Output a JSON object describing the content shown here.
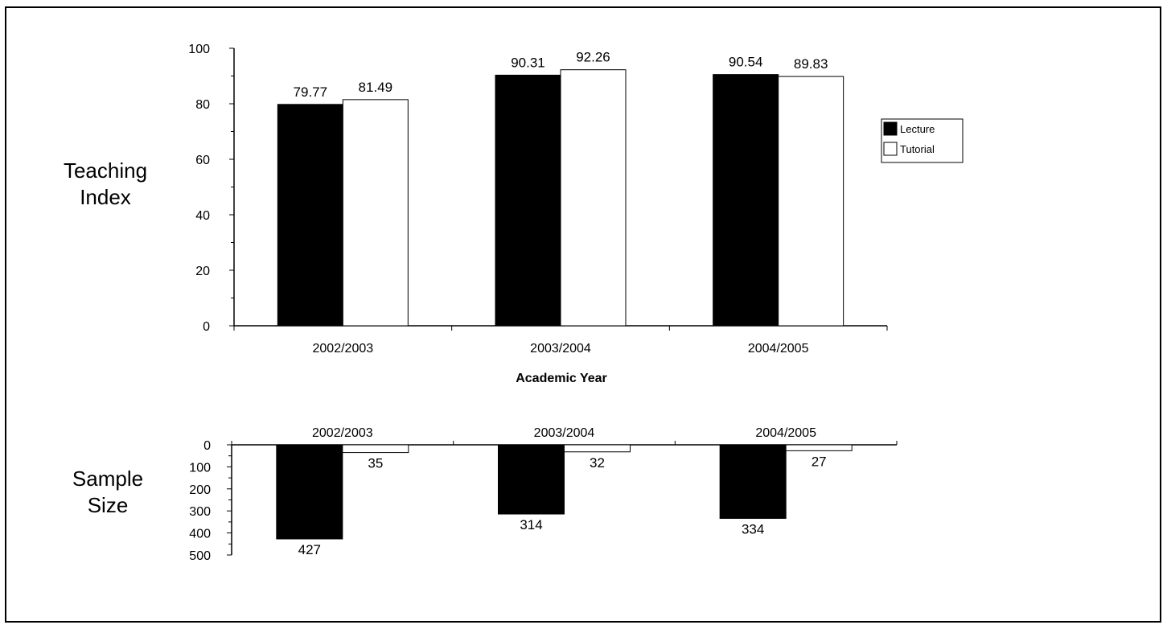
{
  "chart_data": [
    {
      "type": "bar",
      "ylabel": [
        "Teaching",
        "Index"
      ],
      "xlabel": "Academic Year",
      "categories": [
        "2002/2003",
        "2003/2004",
        "2004/2005"
      ],
      "ylim": [
        0,
        100
      ],
      "yticks": [
        "0",
        "20",
        "40",
        "60",
        "80",
        "100"
      ],
      "series": [
        {
          "name": "Lecture",
          "values": [
            79.77,
            90.31,
            90.54
          ],
          "labels": [
            "79.77",
            "90.31",
            "90.54"
          ],
          "color": "#000000"
        },
        {
          "name": "Tutorial",
          "values": [
            81.49,
            92.26,
            89.83
          ],
          "labels": [
            "81.49",
            "92.26",
            "89.83"
          ],
          "color": "#ffffff"
        }
      ],
      "legend": {
        "placement": "right",
        "entries": [
          "Lecture",
          "Tutorial"
        ]
      },
      "grid": false
    },
    {
      "type": "bar",
      "ylabel": [
        "Sample",
        "Size"
      ],
      "categories": [
        "2002/2003",
        "2003/2004",
        "2004/2005"
      ],
      "ylim": [
        0,
        500
      ],
      "y_axis_inverted": true,
      "yticks": [
        "0",
        "100",
        "200",
        "300",
        "400",
        "500"
      ],
      "series": [
        {
          "name": "Lecture",
          "values": [
            427,
            314,
            334
          ],
          "labels": [
            "427",
            "314",
            "334"
          ],
          "color": "#000000"
        },
        {
          "name": "Tutorial",
          "values": [
            35,
            32,
            27
          ],
          "labels": [
            "35",
            "32",
            "27"
          ],
          "color": "#ffffff"
        }
      ],
      "grid": false
    }
  ]
}
